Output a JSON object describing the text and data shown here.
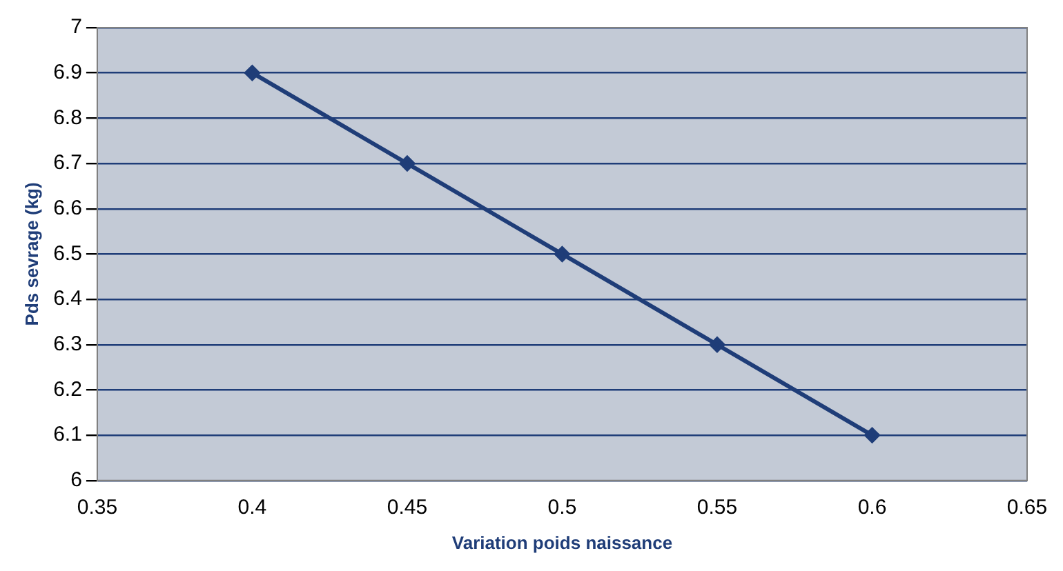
{
  "chart_data": {
    "type": "line",
    "xlabel": "Variation poids naissance",
    "ylabel": "Pds sevrage (kg)",
    "x": [
      0.4,
      0.45,
      0.5,
      0.55,
      0.6
    ],
    "series": [
      {
        "color": "#1f3d78",
        "values": [
          6.9,
          6.7,
          6.5,
          6.3,
          6.1
        ]
      }
    ],
    "xlim": [
      0.35,
      0.65
    ],
    "xticks": [
      0.35,
      0.4,
      0.45,
      0.5,
      0.55,
      0.6,
      0.65
    ],
    "ylim": [
      6,
      7
    ],
    "yticks": [
      6,
      6.1,
      6.2,
      6.3,
      6.4,
      6.5,
      6.6,
      6.7,
      6.8,
      6.9,
      7
    ],
    "grid": "y",
    "legend": false,
    "marker": "diamond",
    "line_style": "solid"
  }
}
